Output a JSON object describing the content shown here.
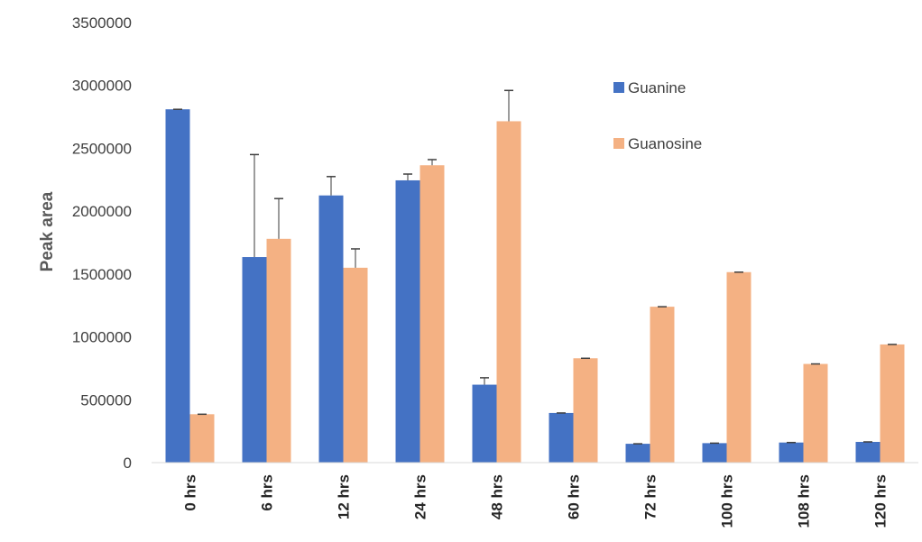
{
  "chart_data": {
    "type": "bar",
    "title": "",
    "xlabel": "",
    "ylabel": "Peak area",
    "ylim": [
      0,
      3500000
    ],
    "yticks": [
      0,
      500000,
      1000000,
      1500000,
      2000000,
      2500000,
      3000000,
      3500000
    ],
    "grid": false,
    "legend": "top-right",
    "categories": [
      "0 hrs",
      "6 hrs",
      "12 hrs",
      "24 hrs",
      "48 hrs",
      "60 hrs",
      "72 hrs",
      "100 hrs",
      "108 hrs",
      "120 hrs"
    ],
    "series": [
      {
        "name": "Guanine",
        "color": "#4472C4",
        "values": [
          2810000,
          1635000,
          2125000,
          2245000,
          620000,
          395000,
          150000,
          155000,
          160000,
          165000
        ],
        "errors": [
          0,
          815000,
          150000,
          50000,
          55000,
          0,
          0,
          0,
          0,
          0
        ]
      },
      {
        "name": "Guanosine",
        "color": "#F4B183",
        "values": [
          385000,
          1780000,
          1550000,
          2365000,
          2715000,
          830000,
          1240000,
          1515000,
          785000,
          940000
        ],
        "errors": [
          0,
          320000,
          150000,
          45000,
          245000,
          0,
          0,
          0,
          0,
          0
        ]
      }
    ]
  }
}
